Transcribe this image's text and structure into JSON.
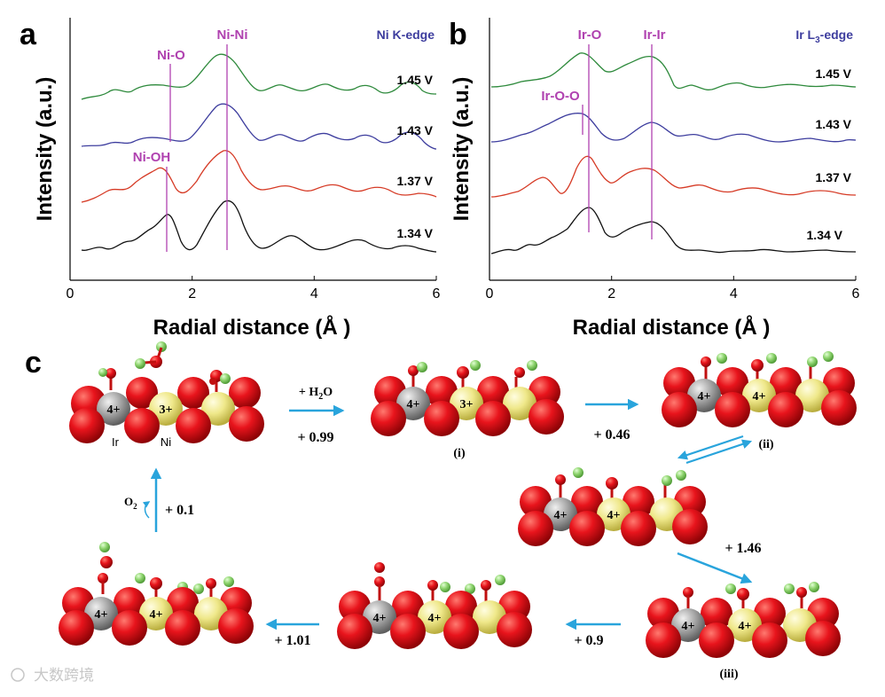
{
  "panel_a": {
    "label": "a",
    "edge": "Ni K-edge",
    "ylabel": "Intensity (a.u.)",
    "xlabel": "Radial distance (Å )",
    "markers": [
      "Ni-O",
      "Ni-Ni",
      "Ni-OH"
    ],
    "voltages": [
      "1.45 V",
      "1.43 V",
      "1.37 V",
      "1.34 V"
    ]
  },
  "panel_b": {
    "label": "b",
    "edge_main": "Ir L",
    "edge_sub": "3",
    "edge_tail": "-edge",
    "ylabel": "Intensity (a.u.)",
    "xlabel": "Radial distance (Å )",
    "markers": [
      "Ir-O",
      "Ir-Ir",
      "Ir-O-O"
    ],
    "voltages": [
      "1.45 V",
      "1.43 V",
      "1.37 V",
      "1.34 V"
    ]
  },
  "chart_data": [
    {
      "type": "line",
      "title": "Ni K-edge",
      "xlabel": "Radial distance (Å )",
      "ylabel": "Intensity (a.u.)",
      "xlim": [
        0,
        6
      ],
      "xticks": [
        "0",
        "2",
        "4",
        "6"
      ],
      "vlines": [
        {
          "label": "Ni-O / Ni-OH",
          "x": 1.6
        },
        {
          "label": "Ni-Ni",
          "x": 2.6
        }
      ],
      "series": [
        {
          "name": "1.45 V",
          "color": "#2e8a3c",
          "x": [
            0,
            0.5,
            1,
            1.3,
            1.6,
            2,
            2.3,
            2.6,
            2.9,
            3.2,
            3.6,
            4,
            4.4,
            4.8,
            5.2,
            5.5,
            6
          ],
          "y": [
            0.02,
            0.05,
            0.25,
            0.35,
            0.3,
            0.3,
            0.6,
            1.0,
            0.6,
            0.25,
            0.3,
            0.2,
            0.28,
            0.18,
            0.3,
            0.35,
            0.2
          ]
        },
        {
          "name": "1.43 V",
          "color": "#3d3d9e",
          "x": [
            0,
            0.5,
            1,
            1.3,
            1.6,
            2,
            2.3,
            2.6,
            2.9,
            3.2,
            3.6,
            4,
            4.4,
            4.8,
            5.2,
            5.5,
            6
          ],
          "y": [
            0.1,
            0.15,
            0.3,
            0.4,
            0.35,
            0.3,
            0.6,
            1.0,
            0.55,
            0.25,
            0.3,
            0.15,
            0.25,
            0.2,
            0.3,
            0.35,
            0.05
          ]
        },
        {
          "name": "1.37 V",
          "color": "#d63b26",
          "x": [
            0,
            0.5,
            1,
            1.3,
            1.6,
            2,
            2.3,
            2.6,
            2.9,
            3.2,
            3.6,
            4,
            4.4,
            4.8,
            5.2,
            5.5,
            6
          ],
          "y": [
            0.0,
            0.1,
            0.4,
            0.5,
            0.9,
            0.3,
            0.6,
            1.0,
            0.55,
            0.25,
            0.3,
            0.2,
            0.25,
            0.2,
            0.3,
            0.35,
            0.2
          ]
        },
        {
          "name": "1.34 V",
          "color": "#111111",
          "x": [
            0,
            0.5,
            1,
            1.3,
            1.6,
            2,
            2.3,
            2.6,
            2.9,
            3.2,
            3.6,
            4,
            4.4,
            4.8,
            5.2,
            5.5,
            6
          ],
          "y": [
            0.0,
            0.1,
            0.3,
            0.35,
            0.7,
            0.1,
            0.5,
            1.0,
            0.5,
            0.15,
            0.25,
            0.2,
            0.3,
            0.15,
            0.2,
            0.25,
            0.1
          ]
        }
      ]
    },
    {
      "type": "line",
      "title": "Ir L3-edge",
      "xlabel": "Radial distance (Å )",
      "ylabel": "Intensity (a.u.)",
      "xlim": [
        0,
        6
      ],
      "xticks": [
        "0",
        "2",
        "4",
        "6"
      ],
      "vlines": [
        {
          "label": "Ir-O-O",
          "x": 1.5
        },
        {
          "label": "Ir-O",
          "x": 1.6
        },
        {
          "label": "Ir-Ir",
          "x": 2.6
        }
      ],
      "series": [
        {
          "name": "1.45 V",
          "color": "#2e8a3c",
          "x": [
            0,
            0.5,
            1,
            1.3,
            1.6,
            2,
            2.3,
            2.6,
            2.9,
            3.2,
            3.6,
            4,
            4.4,
            4.8,
            5.2,
            5.5,
            6
          ],
          "y": [
            0.0,
            0.1,
            0.3,
            0.5,
            1.0,
            0.5,
            0.6,
            0.9,
            0.6,
            0.3,
            0.3,
            0.2,
            0.15,
            0.2,
            0.15,
            0.15,
            0.1
          ]
        },
        {
          "name": "1.43 V",
          "color": "#3d3d9e",
          "x": [
            0,
            0.5,
            1,
            1.3,
            1.6,
            2,
            2.3,
            2.6,
            2.9,
            3.2,
            3.6,
            4,
            4.4,
            4.8,
            5.2,
            5.5,
            6
          ],
          "y": [
            0.1,
            0.2,
            0.4,
            0.7,
            0.9,
            0.3,
            0.5,
            0.8,
            0.5,
            0.3,
            0.3,
            0.2,
            0.2,
            0.15,
            0.2,
            0.15,
            0.25
          ]
        },
        {
          "name": "1.37 V",
          "color": "#d63b26",
          "x": [
            0,
            0.5,
            1,
            1.3,
            1.6,
            2,
            2.3,
            2.6,
            2.9,
            3.2,
            3.6,
            4,
            4.4,
            4.8,
            5.2,
            5.5,
            6
          ],
          "y": [
            0.0,
            0.2,
            0.6,
            0.3,
            1.0,
            0.4,
            0.6,
            0.75,
            0.5,
            0.3,
            0.3,
            0.2,
            0.25,
            0.2,
            0.2,
            0.2,
            0.25
          ]
        },
        {
          "name": "1.34 V",
          "color": "#111111",
          "x": [
            0,
            0.5,
            1,
            1.3,
            1.6,
            2,
            2.3,
            2.6,
            2.9,
            3.2,
            3.6,
            4,
            4.4,
            4.8,
            5.2,
            5.5,
            6
          ],
          "y": [
            0.05,
            0.15,
            0.3,
            0.4,
            1.0,
            0.2,
            0.5,
            0.6,
            0.5,
            0.1,
            0.1,
            0.05,
            0.1,
            0.05,
            0.1,
            0.05,
            0.1
          ]
        }
      ]
    }
  ],
  "panel_c": {
    "label": "c",
    "charge_ir4": "4+",
    "charge_ni3": "3+",
    "charge_ni4": "4+",
    "atom_ir": "Ir",
    "atom_ni": "Ni",
    "steps": [
      "(i)",
      "(ii)",
      "(iii)"
    ],
    "energies": {
      "e1_top": "+ H",
      "e1_sub": "2",
      "e1_tail": "O",
      "e1_val": "+ 0.99",
      "e2": "+ 0.46",
      "e3": "+ 1.46",
      "e4": "+ 0.9",
      "e5": "+ 1.01",
      "e6": "+ 0.1",
      "o2_main": "O",
      "o2_sub": "2"
    },
    "colors": {
      "oxygen": "#e8141c",
      "hydrogen": "#8ed46e",
      "iridium": "#a8a8a8",
      "nickel": "#efe88a",
      "arrow": "#29a4dc"
    }
  },
  "watermark": "大数跨境"
}
